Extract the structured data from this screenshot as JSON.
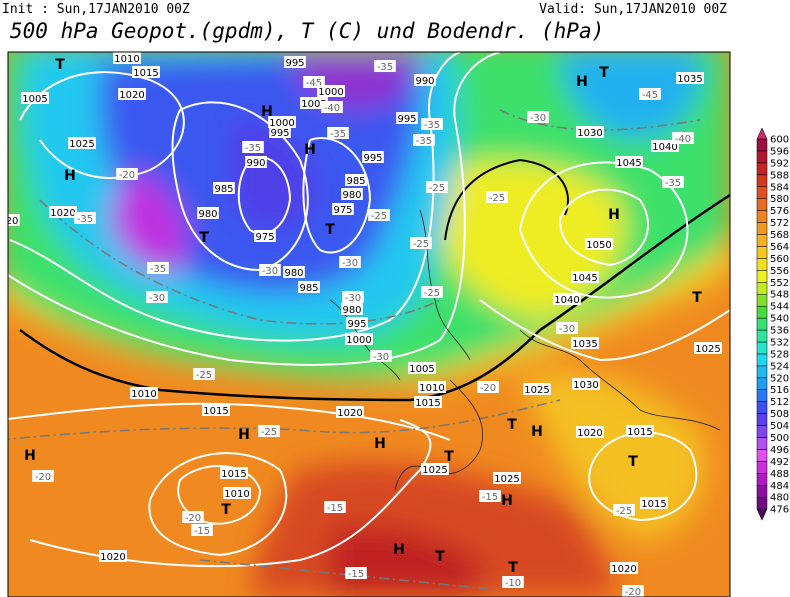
{
  "header": {
    "init": "Init : Sun,17JAN2010 00Z",
    "valid": "Valid: Sun,17JAN2010 00Z",
    "title": "500 hPa Geopot.(gpdm), T (C) und Bodendr. (hPa)"
  },
  "colorbar": {
    "levels": [
      476,
      480,
      484,
      488,
      492,
      496,
      500,
      504,
      508,
      512,
      516,
      520,
      524,
      528,
      532,
      536,
      540,
      544,
      548,
      552,
      556,
      560,
      564,
      568,
      572,
      576,
      580,
      584,
      588,
      592,
      596,
      600
    ],
    "colors": [
      "#4a0858",
      "#6e0c7e",
      "#8e10a0",
      "#b018c4",
      "#cc30dc",
      "#e050ec",
      "#b050f0",
      "#8048ec",
      "#5a40ec",
      "#3a50f0",
      "#2a78f2",
      "#209cf2",
      "#20bcf0",
      "#20d8ee",
      "#24e6c8",
      "#30e49c",
      "#34e070",
      "#48dc3c",
      "#84e02c",
      "#c4ea22",
      "#f0f020",
      "#f4de20",
      "#f4c820",
      "#f4b020",
      "#f09a20",
      "#ee8420",
      "#e86a20",
      "#e05020",
      "#d43820",
      "#c42424",
      "#b01830",
      "#9a1040",
      "#d02868"
    ]
  },
  "map_labels": [
    "T",
    "1005",
    "1010",
    "1015",
    "1020",
    "1025",
    "H",
    "1020",
    "20",
    "-35",
    "-20",
    "-35",
    "-30",
    "-35",
    "H",
    "1000",
    "995",
    "990",
    "985",
    "980",
    "T",
    "975",
    "-30",
    "980",
    "985",
    "995",
    "-45",
    "1000",
    "1005",
    "-40",
    "H",
    "-35",
    "995",
    "985",
    "980",
    "975",
    "T",
    "-30",
    "-30",
    "980",
    "995",
    "1000",
    "-30",
    "1005",
    "1010",
    "1015",
    "-35",
    "990",
    "995",
    "-35",
    "-35",
    "-25",
    "-25",
    "-25",
    "-25",
    "H",
    "T",
    "1035",
    "-45",
    "-30",
    "1030",
    "1040",
    "1045",
    "-40",
    "-35",
    "-25",
    "H",
    "1050",
    "1045",
    "1040",
    "-30",
    "1035",
    "1025",
    "T",
    "1030",
    "1025",
    "1020",
    "1015",
    "-20",
    "-25",
    "1010",
    "1015",
    "1020",
    "H",
    "-25",
    "H",
    "-20",
    "1015",
    "1010",
    "T",
    "-20",
    "-15",
    "-15",
    "H",
    "T",
    "1025",
    "T",
    "H",
    "1025",
    "-15",
    "H",
    "T",
    "1015",
    "-25",
    "1020",
    "H",
    "T",
    "-15",
    "T",
    "-10",
    "1020",
    "-20"
  ]
}
